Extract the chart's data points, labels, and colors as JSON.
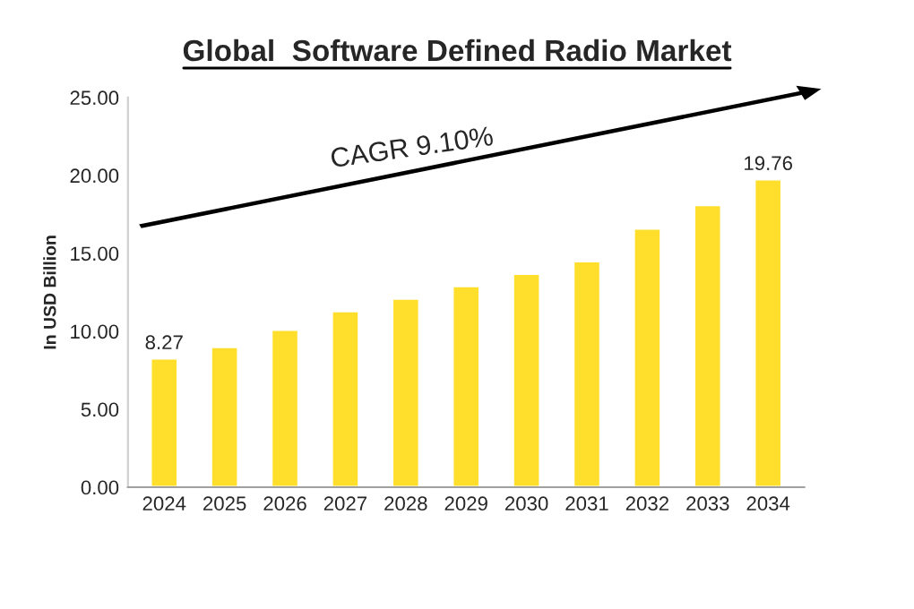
{
  "chart_data": {
    "type": "bar",
    "title": "Global  Software Defined Radio Market",
    "ylabel": "In USD Billion",
    "categories": [
      "2024",
      "2025",
      "2026",
      "2027",
      "2028",
      "2029",
      "2030",
      "2031",
      "2032",
      "2033",
      "2034"
    ],
    "values": [
      8.27,
      9.0,
      10.1,
      11.3,
      12.1,
      12.9,
      13.7,
      14.5,
      16.6,
      18.1,
      19.76
    ],
    "value_labels": [
      "8.27",
      null,
      null,
      null,
      null,
      null,
      null,
      null,
      null,
      null,
      "19.76"
    ],
    "color": "#ffdf2b",
    "ylim": [
      0,
      25
    ],
    "yticks": [
      {
        "value": 0,
        "label": "0.00"
      },
      {
        "value": 5,
        "label": "5.00"
      },
      {
        "value": 10,
        "label": "10.00"
      },
      {
        "value": 15,
        "label": "15.00"
      },
      {
        "value": 20,
        "label": "20.00"
      },
      {
        "value": 25,
        "label": "25.00"
      }
    ],
    "annotations": [
      "CAGR 9.10%"
    ],
    "grid": false,
    "legend": false
  }
}
